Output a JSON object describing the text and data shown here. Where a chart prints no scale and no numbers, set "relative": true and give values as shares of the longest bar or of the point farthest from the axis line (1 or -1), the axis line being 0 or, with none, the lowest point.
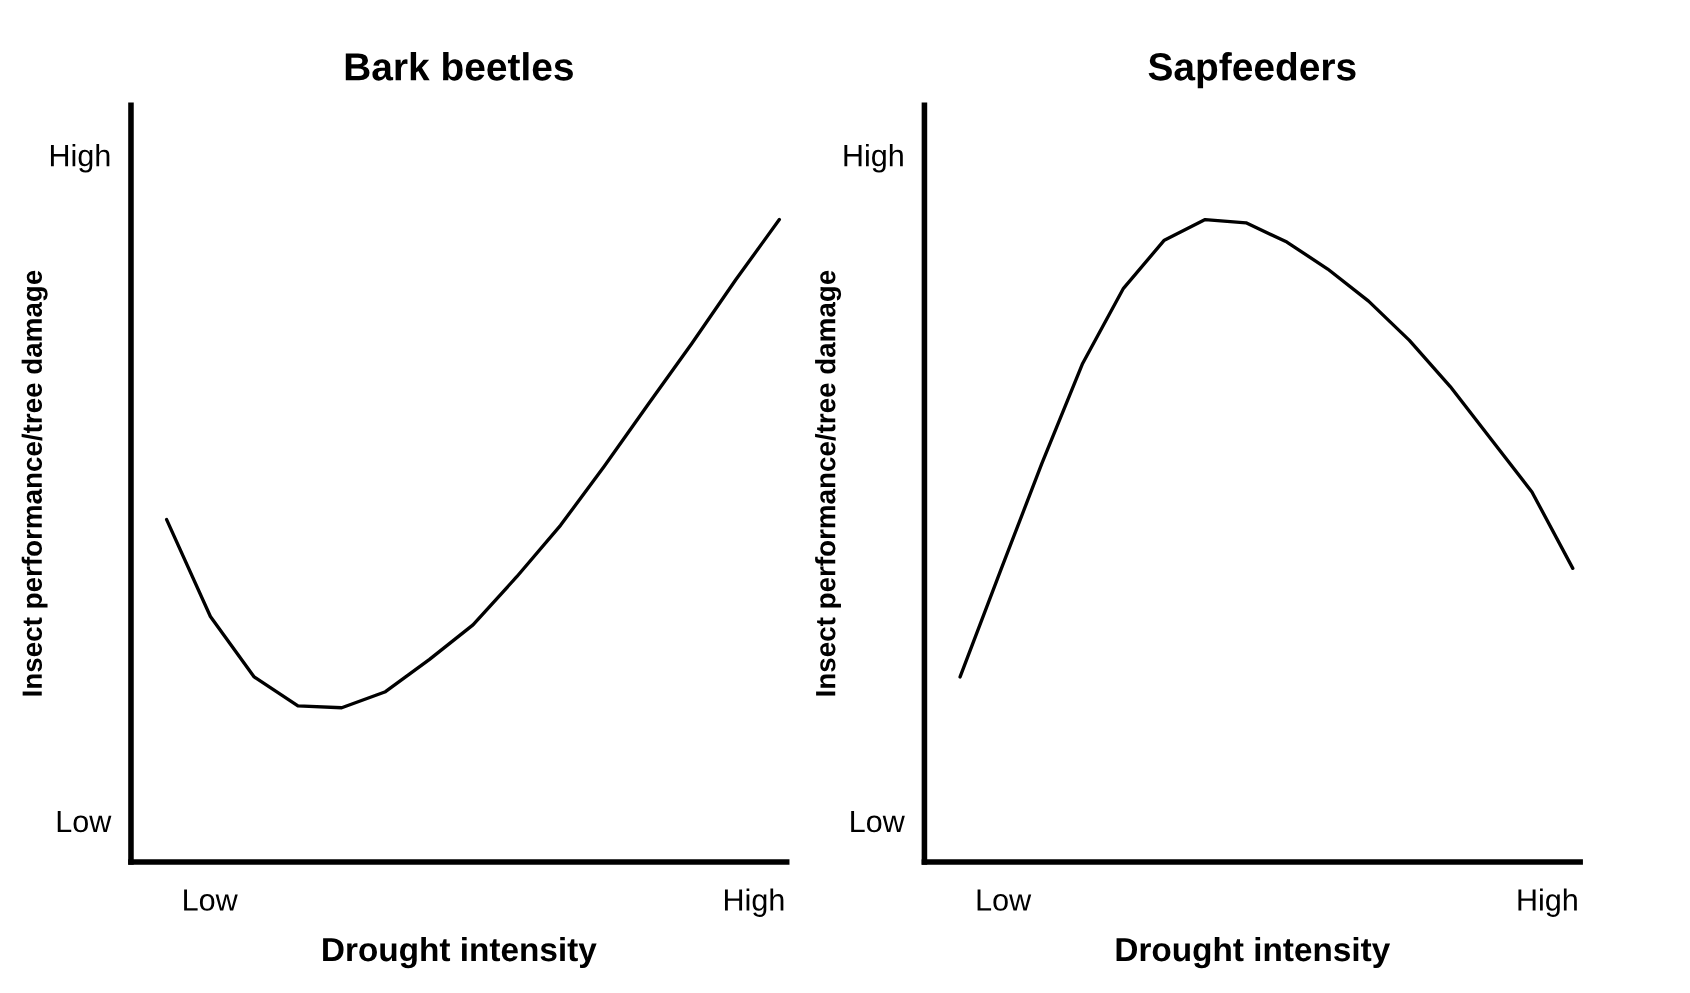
{
  "chart_data": [
    {
      "type": "line",
      "title": "Bark beetles",
      "xlabel": "Drought intensity",
      "ylabel": "Insect performance/tree damage",
      "relative": true,
      "annotations": [
        "Low",
        "High",
        "Low",
        "High"
      ],
      "categories": [
        null,
        null,
        null,
        null,
        null,
        null,
        null,
        null,
        null,
        null,
        null,
        null,
        null,
        null,
        null
      ],
      "series": [
        {
          "color": "#000000",
          "values": [
            0.533,
            0.382,
            0.288,
            0.243,
            0.24,
            0.265,
            0.315,
            0.369,
            0.444,
            0.524,
            0.616,
            0.712,
            0.807,
            0.906,
            1.0
          ]
        }
      ]
    },
    {
      "type": "line",
      "title": "Sapfeeders",
      "xlabel": "Drought intensity",
      "ylabel": "Insect performance/tree damage",
      "relative": true,
      "annotations": [
        "Low",
        "High",
        "Low",
        "High"
      ],
      "categories": [
        null,
        null,
        null,
        null,
        null,
        null,
        null,
        null,
        null,
        null,
        null,
        null,
        null,
        null,
        null,
        null
      ],
      "series": [
        {
          "color": "#000000",
          "values": [
            0.288,
            0.455,
            0.62,
            0.776,
            0.893,
            0.968,
            1.0,
            0.995,
            0.965,
            0.923,
            0.873,
            0.812,
            0.74,
            0.658,
            0.576,
            0.457
          ]
        }
      ]
    }
  ]
}
